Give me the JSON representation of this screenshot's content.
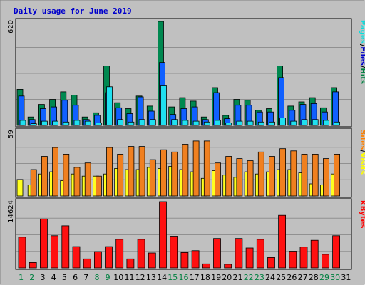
{
  "chart_data": {
    "type": "bar",
    "title": "Daily usage for June 2019",
    "categories": [
      "1",
      "2",
      "3",
      "4",
      "5",
      "6",
      "7",
      "8",
      "9",
      "10",
      "11",
      "12",
      "13",
      "14",
      "15",
      "16",
      "17",
      "18",
      "19",
      "20",
      "21",
      "22",
      "23",
      "24",
      "25",
      "26",
      "27",
      "28",
      "29",
      "30",
      "31"
    ],
    "weekend_days": [
      "1",
      "2",
      "8",
      "9",
      "15",
      "16",
      "22",
      "23",
      "29",
      "30"
    ],
    "panels": [
      {
        "name": "hits-panel",
        "ymax": 620,
        "ymax_label": "620",
        "legend": [
          "Pages",
          "/",
          "Files",
          "/",
          "Hits"
        ],
        "legend_colors": [
          "#00e0e0",
          "#000000",
          "#0000cc",
          "#000000",
          "#008040"
        ],
        "series": [
          {
            "name": "Hits",
            "color": "#008850",
            "values": [
              215,
              50,
              125,
              155,
              200,
              180,
              50,
              75,
              355,
              135,
              100,
              175,
              115,
              620,
              110,
              165,
              145,
              50,
              225,
              60,
              155,
              150,
              90,
              100,
              355,
              115,
              140,
              165,
              105,
              225,
              0
            ]
          },
          {
            "name": "Files",
            "color": "#1060ff",
            "values": [
              175,
              35,
              100,
              110,
              150,
              120,
              35,
              60,
              195,
              105,
              70,
              170,
              85,
              375,
              65,
              100,
              110,
              35,
              195,
              40,
              120,
              120,
              80,
              80,
              285,
              90,
              125,
              130,
              80,
              200,
              0
            ]
          },
          {
            "name": "Pages",
            "color": "#20e0f0",
            "values": [
              30,
              10,
              25,
              25,
              20,
              30,
              25,
              15,
              230,
              35,
              20,
              35,
              35,
              240,
              35,
              30,
              25,
              20,
              30,
              15,
              25,
              25,
              20,
              20,
              45,
              25,
              35,
              35,
              30,
              20,
              0
            ]
          }
        ]
      },
      {
        "name": "visits-panel",
        "ymax": 59,
        "ymax_label": "59",
        "legend": [
          "Sites",
          "/",
          "Visits"
        ],
        "legend_colors": [
          "#ff8000",
          "#000000",
          "#ffff00"
        ],
        "series": [
          {
            "name": "Visits",
            "color": "#ffff20",
            "values": [
              15,
              10,
              20,
              22,
              14,
              20,
              18,
              18,
              20,
              25,
              24,
              24,
              26,
              25,
              27,
              24,
              22,
              16,
              23,
              19,
              17,
              22,
              20,
              22,
              24,
              24,
              21,
              11,
              10,
              20,
              0
            ]
          },
          {
            "name": "Sites",
            "color": "#f08020",
            "values": [
              0,
              24,
              36,
              44,
              38,
              26,
              30,
              18,
              44,
              38,
              45,
              45,
              33,
              42,
              40,
              47,
              50,
              50,
              30,
              36,
              34,
              32,
              40,
              36,
              43,
              41,
              38,
              38,
              34,
              38,
              0
            ]
          }
        ]
      },
      {
        "name": "kbytes-panel",
        "ymax": 14624,
        "ymax_label": "14624",
        "legend": [
          "KBytes"
        ],
        "legend_colors": [
          "#ff0000"
        ],
        "series": [
          {
            "name": "KBytes",
            "color": "#ff1010",
            "values": [
              6800,
              1200,
              10800,
              7100,
              9300,
              4700,
              2000,
              3600,
              4700,
              6300,
              2000,
              6300,
              3300,
              14624,
              7000,
              3400,
              3800,
              900,
              6500,
              800,
              6500,
              4400,
              6300,
              2300,
              11600,
              3700,
              4600,
              6100,
              3000,
              7100,
              0
            ]
          }
        ]
      }
    ]
  }
}
